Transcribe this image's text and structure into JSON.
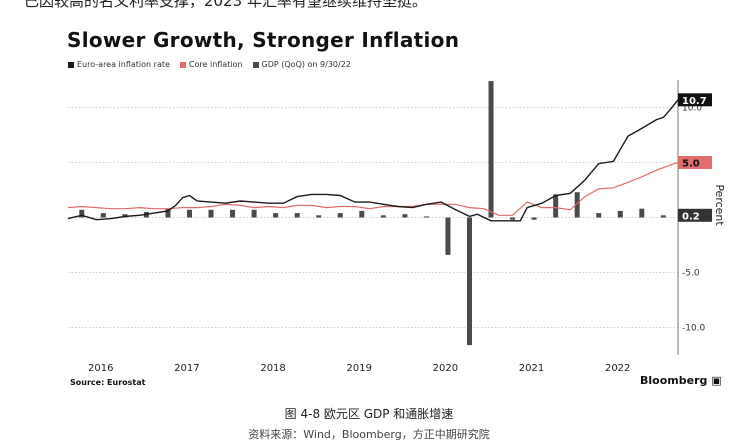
{
  "page": {
    "top_text": "已因较高的名义利率支撑，2023 年汇率有望继续维持坚挺。",
    "caption": "图 4-8     欧元区 GDP 和通胀增速",
    "bottom_text": "资料来源：Wind，Bloomberg，方正中期研究院"
  },
  "chart_data": {
    "type": "line",
    "title": "Slower Growth, Stronger Inflation",
    "source": "Source: Eurostat",
    "brand": "Bloomberg",
    "ylabel": "Percent",
    "ylim": [
      -12.5,
      12.5
    ],
    "y_ticks": [
      -10,
      -5,
      0,
      5,
      10
    ],
    "y_tick_labels": [
      "-10.0",
      "-5.0",
      "",
      "5.0",
      "10.0"
    ],
    "x_ticks": [
      2016,
      2017,
      2018,
      2019,
      2020,
      2021,
      2022
    ],
    "x_tick_labels": [
      "2016",
      "2017",
      "2018",
      "2019",
      "2020",
      "2021",
      "2022"
    ],
    "xlim": [
      2015.67,
      2022.75
    ],
    "legend": [
      {
        "label": "Euro-area inflation rate",
        "color": "#1a1a1a"
      },
      {
        "label": "Core inflation",
        "color": "#e06c6c"
      },
      {
        "label": "GDP (QoQ) on 9/30/22",
        "color": "#4a4a4a"
      }
    ],
    "series": [
      {
        "name": "Euro-area inflation rate",
        "color": "#1a1a1a",
        "x": [
          2015.67,
          2015.83,
          2016.0,
          2016.17,
          2016.33,
          2016.5,
          2016.67,
          2016.83,
          2016.92,
          2017.0,
          2017.08,
          2017.17,
          2017.33,
          2017.5,
          2017.67,
          2017.83,
          2018.0,
          2018.17,
          2018.33,
          2018.5,
          2018.67,
          2018.83,
          2019.0,
          2019.17,
          2019.33,
          2019.5,
          2019.67,
          2019.83,
          2020.0,
          2020.17,
          2020.33,
          2020.42,
          2020.58,
          2020.75,
          2020.92,
          2021.0,
          2021.17,
          2021.33,
          2021.5,
          2021.67,
          2021.83,
          2022.0,
          2022.17,
          2022.33,
          2022.5,
          2022.58,
          2022.67,
          2022.75
        ],
        "values": [
          -0.1,
          0.2,
          -0.2,
          -0.1,
          0.1,
          0.2,
          0.4,
          0.6,
          1.1,
          1.8,
          2.0,
          1.5,
          1.4,
          1.3,
          1.5,
          1.4,
          1.3,
          1.3,
          1.9,
          2.1,
          2.1,
          2.0,
          1.4,
          1.4,
          1.2,
          1.0,
          0.9,
          1.2,
          1.4,
          0.7,
          0.1,
          0.3,
          -0.3,
          -0.3,
          -0.3,
          0.9,
          1.3,
          2.0,
          2.2,
          3.4,
          4.9,
          5.1,
          7.4,
          8.1,
          8.9,
          9.1,
          9.9,
          10.7
        ]
      },
      {
        "name": "Core inflation",
        "color": "#e06c6c",
        "x": [
          2015.67,
          2015.83,
          2016.0,
          2016.17,
          2016.33,
          2016.5,
          2016.67,
          2016.83,
          2017.0,
          2017.17,
          2017.33,
          2017.5,
          2017.67,
          2017.83,
          2018.0,
          2018.17,
          2018.33,
          2018.5,
          2018.67,
          2018.83,
          2019.0,
          2019.17,
          2019.33,
          2019.5,
          2019.67,
          2019.83,
          2020.0,
          2020.17,
          2020.33,
          2020.5,
          2020.67,
          2020.83,
          2021.0,
          2021.17,
          2021.33,
          2021.5,
          2021.67,
          2021.83,
          2022.0,
          2022.17,
          2022.33,
          2022.5,
          2022.67,
          2022.75
        ],
        "values": [
          0.9,
          1.0,
          0.9,
          0.8,
          0.8,
          0.9,
          0.8,
          0.8,
          0.9,
          0.9,
          1.0,
          1.2,
          1.1,
          0.9,
          1.0,
          0.9,
          1.1,
          1.1,
          0.9,
          1.0,
          1.0,
          0.8,
          1.0,
          1.0,
          1.0,
          1.2,
          1.2,
          1.2,
          0.9,
          0.8,
          0.2,
          0.2,
          1.4,
          0.9,
          0.9,
          0.7,
          1.9,
          2.6,
          2.7,
          3.2,
          3.7,
          4.3,
          4.8,
          5.0
        ]
      }
    ],
    "gdp_bars": {
      "name": "GDP (QoQ) on 9/30/22",
      "color": "#4a4a4a",
      "x": [
        2015.83,
        2016.08,
        2016.33,
        2016.58,
        2016.83,
        2017.08,
        2017.33,
        2017.58,
        2017.83,
        2018.08,
        2018.33,
        2018.58,
        2018.83,
        2019.08,
        2019.33,
        2019.58,
        2019.83,
        2020.08,
        2020.33,
        2020.58,
        2020.83,
        2021.08,
        2021.33,
        2021.58,
        2021.83,
        2022.08,
        2022.33,
        2022.58
      ],
      "values": [
        0.7,
        0.4,
        0.3,
        0.5,
        0.8,
        0.7,
        0.7,
        0.7,
        0.7,
        0.4,
        0.4,
        0.2,
        0.4,
        0.6,
        0.2,
        0.3,
        0.1,
        -3.4,
        -11.6,
        12.4,
        -0.2,
        -0.2,
        2.1,
        2.3,
        0.4,
        0.6,
        0.8,
        0.2
      ]
    },
    "value_labels": [
      {
        "text": "10.7",
        "value": 10.7,
        "bg": "#111111",
        "fg": "#ffffff"
      },
      {
        "text": "5.0",
        "value": 5.0,
        "bg": "#e06c6c",
        "fg": "#111111"
      },
      {
        "text": "0.2",
        "value": 0.2,
        "bg": "#333333",
        "fg": "#ffffff"
      }
    ]
  }
}
